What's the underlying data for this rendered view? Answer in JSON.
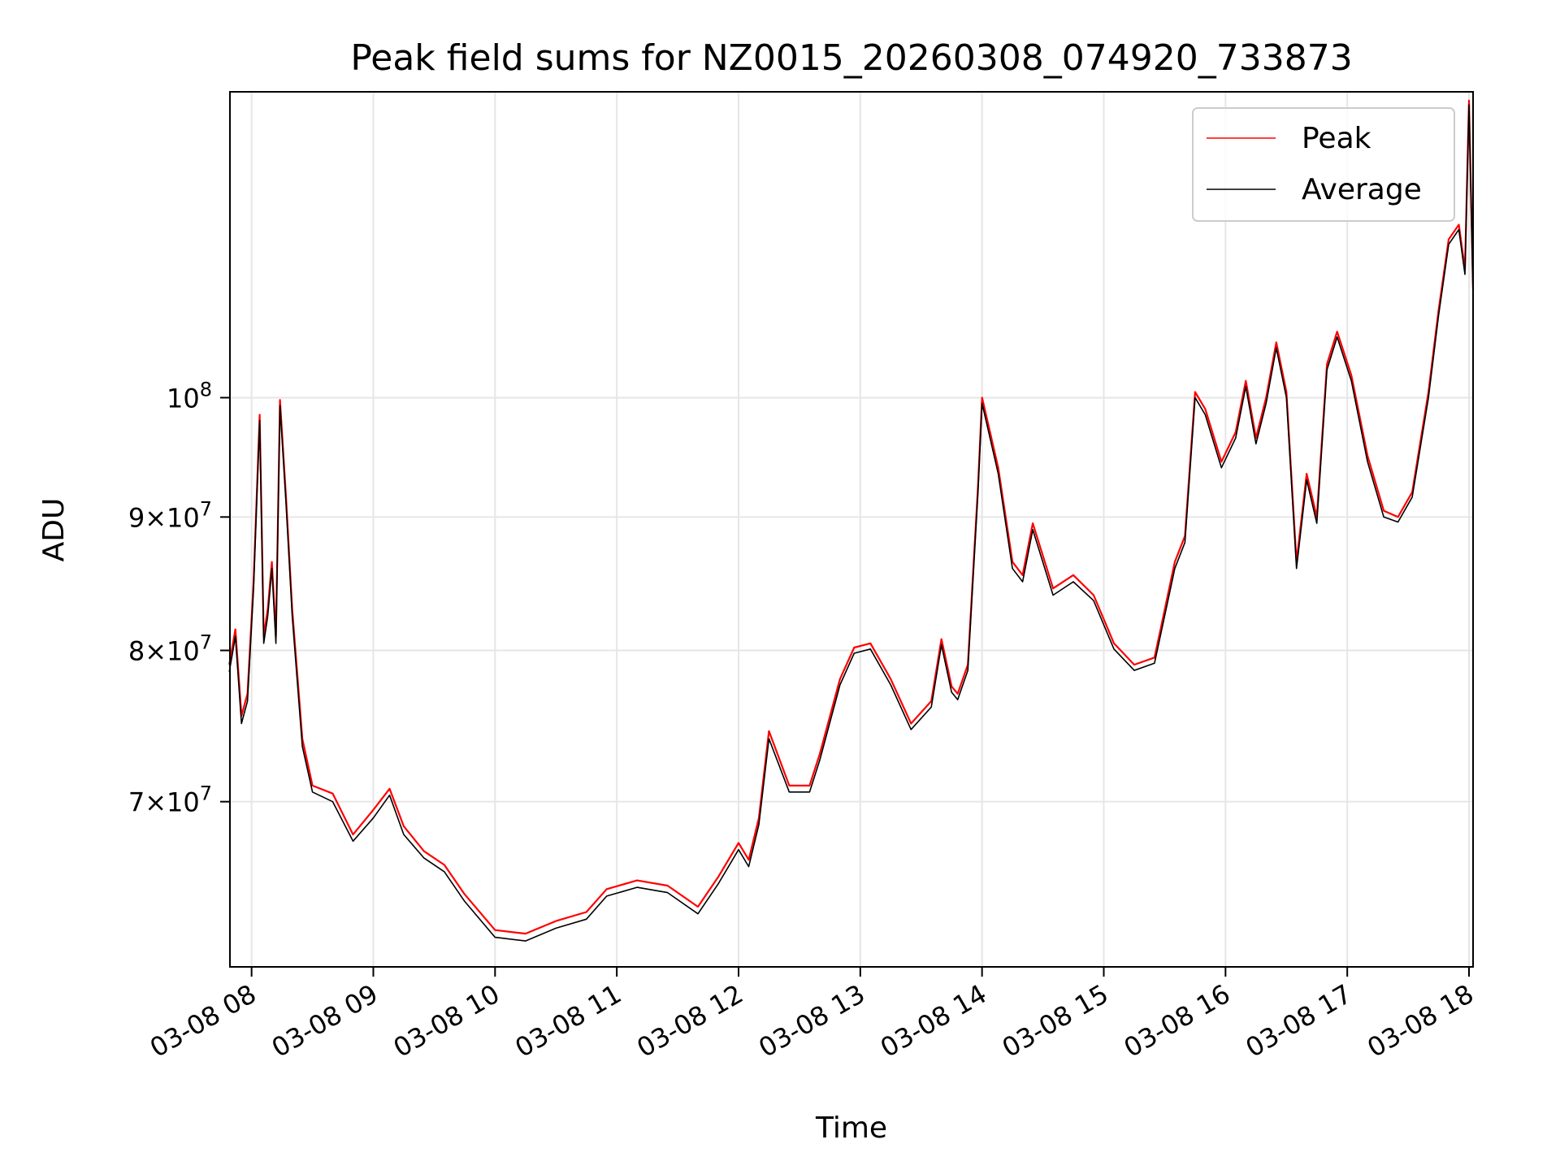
{
  "chart_data": {
    "type": "line",
    "title": "Peak field sums for NZ0015_20260308_074920_733873",
    "xlabel": "Time",
    "ylabel": "ADU",
    "y_scale": "log",
    "ylim": [
      60500000,
      131000000
    ],
    "xlim": [
      "2026-03-08 07:49:20",
      "2026-03-08 18:02:00"
    ],
    "grid": true,
    "legend_position": "top-right",
    "x_ticks": [
      {
        "value": "2026-03-08 08:00",
        "label": "03-08 08"
      },
      {
        "value": "2026-03-08 09:00",
        "label": "03-08 09"
      },
      {
        "value": "2026-03-08 10:00",
        "label": "03-08 10"
      },
      {
        "value": "2026-03-08 11:00",
        "label": "03-08 11"
      },
      {
        "value": "2026-03-08 12:00",
        "label": "03-08 12"
      },
      {
        "value": "2026-03-08 13:00",
        "label": "03-08 13"
      },
      {
        "value": "2026-03-08 14:00",
        "label": "03-08 14"
      },
      {
        "value": "2026-03-08 15:00",
        "label": "03-08 15"
      },
      {
        "value": "2026-03-08 16:00",
        "label": "03-08 16"
      },
      {
        "value": "2026-03-08 17:00",
        "label": "03-08 17"
      },
      {
        "value": "2026-03-08 18:00",
        "label": "03-08 18"
      }
    ],
    "y_ticks": [
      {
        "value": 70000000,
        "mantissa": "7",
        "base": "10",
        "exponent": "7"
      },
      {
        "value": 80000000,
        "mantissa": "8",
        "base": "10",
        "exponent": "7"
      },
      {
        "value": 90000000,
        "mantissa": "9",
        "base": "10",
        "exponent": "7"
      },
      {
        "value": 100000000,
        "mantissa": "",
        "base": "10",
        "exponent": "8"
      }
    ],
    "x": [
      "2026-03-08 07:49",
      "2026-03-08 07:52",
      "2026-03-08 07:55",
      "2026-03-08 07:58",
      "2026-03-08 08:01",
      "2026-03-08 08:04",
      "2026-03-08 08:06",
      "2026-03-08 08:08",
      "2026-03-08 08:10",
      "2026-03-08 08:12",
      "2026-03-08 08:14",
      "2026-03-08 08:17",
      "2026-03-08 08:20",
      "2026-03-08 08:25",
      "2026-03-08 08:30",
      "2026-03-08 08:40",
      "2026-03-08 08:50",
      "2026-03-08 09:00",
      "2026-03-08 09:08",
      "2026-03-08 09:15",
      "2026-03-08 09:25",
      "2026-03-08 09:35",
      "2026-03-08 09:45",
      "2026-03-08 10:00",
      "2026-03-08 10:15",
      "2026-03-08 10:30",
      "2026-03-08 10:45",
      "2026-03-08 10:55",
      "2026-03-08 11:10",
      "2026-03-08 11:25",
      "2026-03-08 11:40",
      "2026-03-08 11:50",
      "2026-03-08 12:00",
      "2026-03-08 12:05",
      "2026-03-08 12:10",
      "2026-03-08 12:15",
      "2026-03-08 12:25",
      "2026-03-08 12:35",
      "2026-03-08 12:40",
      "2026-03-08 12:50",
      "2026-03-08 12:57",
      "2026-03-08 13:05",
      "2026-03-08 13:15",
      "2026-03-08 13:25",
      "2026-03-08 13:35",
      "2026-03-08 13:40",
      "2026-03-08 13:45",
      "2026-03-08 13:48",
      "2026-03-08 13:53",
      "2026-03-08 13:58",
      "2026-03-08 14:00",
      "2026-03-08 14:08",
      "2026-03-08 14:15",
      "2026-03-08 14:20",
      "2026-03-08 14:25",
      "2026-03-08 14:35",
      "2026-03-08 14:45",
      "2026-03-08 14:55",
      "2026-03-08 15:05",
      "2026-03-08 15:15",
      "2026-03-08 15:25",
      "2026-03-08 15:28",
      "2026-03-08 15:35",
      "2026-03-08 15:40",
      "2026-03-08 15:45",
      "2026-03-08 15:50",
      "2026-03-08 15:58",
      "2026-03-08 16:05",
      "2026-03-08 16:10",
      "2026-03-08 16:15",
      "2026-03-08 16:20",
      "2026-03-08 16:25",
      "2026-03-08 16:30",
      "2026-03-08 16:35",
      "2026-03-08 16:40",
      "2026-03-08 16:45",
      "2026-03-08 16:50",
      "2026-03-08 16:55",
      "2026-03-08 17:02",
      "2026-03-08 17:10",
      "2026-03-08 17:18",
      "2026-03-08 17:25",
      "2026-03-08 17:32",
      "2026-03-08 17:40",
      "2026-03-08 17:45",
      "2026-03-08 17:50",
      "2026-03-08 17:55",
      "2026-03-08 17:58",
      "2026-03-08 18:00",
      "2026-03-08 18:02"
    ],
    "series": [
      {
        "name": "Peak",
        "color": "#ff0000",
        "values": [
          79000000,
          81500000,
          75500000,
          77000000,
          85000000,
          98500000,
          81000000,
          83000000,
          86500000,
          81000000,
          99800000,
          91500000,
          83000000,
          74000000,
          71000000,
          70500000,
          68000000,
          69500000,
          70800000,
          68500000,
          67000000,
          66200000,
          64500000,
          62500000,
          62300000,
          63000000,
          63500000,
          64800000,
          65300000,
          65000000,
          63800000,
          65500000,
          67500000,
          66500000,
          69000000,
          74500000,
          71000000,
          71000000,
          73000000,
          78000000,
          80200000,
          80500000,
          78000000,
          75000000,
          76500000,
          80800000,
          77500000,
          77000000,
          79000000,
          92500000,
          100000000,
          94000000,
          86500000,
          85500000,
          89500000,
          84500000,
          85500000,
          84000000,
          80500000,
          79000000,
          79500000,
          81500000,
          86500000,
          88500000,
          100500000,
          99000000,
          94500000,
          97000000,
          101500000,
          96500000,
          100000000,
          105000000,
          100500000,
          86500000,
          93500000,
          90000000,
          103000000,
          106000000,
          102000000,
          95000000,
          90500000,
          90000000,
          92000000,
          100500000,
          108000000,
          115000000,
          116500000,
          112000000,
          130000000,
          110000000
        ]
      },
      {
        "name": "Average",
        "color": "#000000",
        "values": [
          78500000,
          81000000,
          75000000,
          76500000,
          84500000,
          98000000,
          80500000,
          82500000,
          86000000,
          80500000,
          99300000,
          91000000,
          82500000,
          73500000,
          70600000,
          70000000,
          67600000,
          69000000,
          70400000,
          68000000,
          66600000,
          65800000,
          64100000,
          62100000,
          61900000,
          62600000,
          63100000,
          64400000,
          64900000,
          64600000,
          63400000,
          65100000,
          67100000,
          66100000,
          68600000,
          74000000,
          70600000,
          70600000,
          72600000,
          77600000,
          79800000,
          80100000,
          77600000,
          74600000,
          76100000,
          80400000,
          77100000,
          76600000,
          78600000,
          92000000,
          99500000,
          93500000,
          86000000,
          85000000,
          89000000,
          84000000,
          85000000,
          83600000,
          80100000,
          78600000,
          79100000,
          81100000,
          86000000,
          88000000,
          100000000,
          98500000,
          94000000,
          96500000,
          101000000,
          96000000,
          99500000,
          104500000,
          100000000,
          86000000,
          93000000,
          89500000,
          102500000,
          105500000,
          101500000,
          94500000,
          90000000,
          89600000,
          91600000,
          100000000,
          107500000,
          114500000,
          116000000,
          111500000,
          129500000,
          109500000
        ]
      }
    ]
  }
}
